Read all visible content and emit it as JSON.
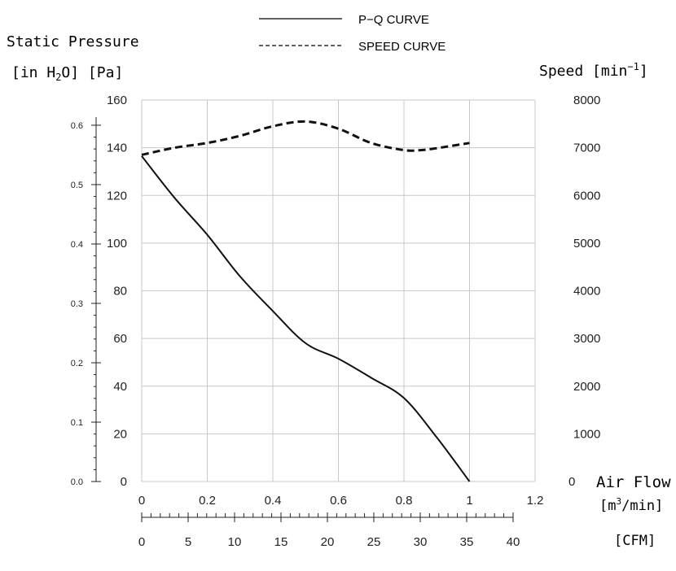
{
  "legend": {
    "pq_label": "P−Q CURVE",
    "speed_label": "SPEED CURVE"
  },
  "labels": {
    "static_pressure": "Static Pressure",
    "pressure_units_open": "[in H",
    "pressure_units_sub": "2",
    "pressure_units_close": "O] [Pa]",
    "speed_main": "Speed [min",
    "speed_sup": "−1",
    "speed_close": "]",
    "air_flow": "Air Flow",
    "airflow_units_open": "[m",
    "airflow_units_sup": "3",
    "airflow_units_close": "/min]",
    "cfm_units": "[CFM]"
  },
  "chart_data": {
    "type": "line",
    "x_axis": {
      "label": "Air Flow [m3/min]",
      "range": [
        0,
        1.2
      ],
      "ticks": [
        "0",
        "0.2",
        "0.4",
        "0.6",
        "0.8",
        "1",
        "1.2"
      ]
    },
    "y_axis_left": {
      "label": "Static Pressure [Pa]",
      "range": [
        0,
        160
      ],
      "ticks": [
        "0",
        "20",
        "40",
        "60",
        "80",
        "100",
        "120",
        "140",
        "160"
      ]
    },
    "y_axis_inH2O": {
      "label": "[in H2O]",
      "range": [
        0,
        0.6424
      ],
      "ticks": [
        "0.0",
        "0.1",
        "0.2",
        "0.3",
        "0.4",
        "0.5",
        "0.6"
      ]
    },
    "y_axis_right": {
      "label": "Speed [min-1]",
      "range": [
        0,
        8000
      ],
      "ticks": [
        "0",
        "1000",
        "2000",
        "3000",
        "4000",
        "5000",
        "6000",
        "7000",
        "8000"
      ]
    },
    "x_axis_cfm": {
      "label": "[CFM]",
      "range": [
        0,
        40
      ],
      "ticks": [
        "0",
        "5",
        "10",
        "15",
        "20",
        "25",
        "30",
        "35",
        "40"
      ]
    },
    "grid": true,
    "legend_position": "top-center",
    "series": [
      {
        "name": "P−Q CURVE",
        "axis": "left",
        "style": "solid",
        "x": [
          0,
          0.1,
          0.2,
          0.3,
          0.4,
          0.5,
          0.6,
          0.7,
          0.8,
          0.9,
          1.0
        ],
        "y": [
          136.5,
          119,
          103.5,
          86,
          71.5,
          58,
          51.5,
          43.5,
          35,
          18.5,
          0
        ]
      },
      {
        "name": "SPEED CURVE",
        "axis": "right",
        "style": "dashed",
        "x": [
          0,
          0.1,
          0.2,
          0.3,
          0.4,
          0.5,
          0.6,
          0.7,
          0.8,
          0.85,
          0.9,
          1.0
        ],
        "y": [
          6850,
          7000,
          7100,
          7250,
          7450,
          7550,
          7400,
          7100,
          6950,
          6950,
          6990,
          7100
        ]
      }
    ]
  }
}
